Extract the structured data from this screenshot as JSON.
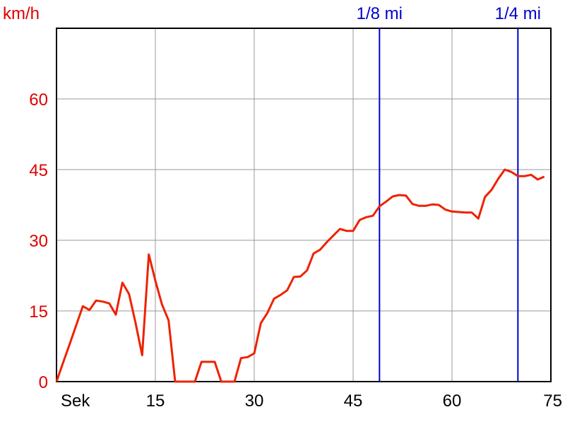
{
  "chart_data": {
    "type": "line",
    "ylabel": "km/h",
    "xlabel": "Sek",
    "xlim": [
      0,
      75
    ],
    "ylim": [
      0,
      75
    ],
    "x_ticks": [
      15,
      30,
      45,
      60,
      75
    ],
    "y_ticks": [
      0,
      15,
      30,
      45,
      60
    ],
    "grid": true,
    "series": [
      {
        "color": "#ee2200",
        "x": [
          0,
          1,
          2,
          3,
          4,
          5,
          6,
          7,
          8,
          9,
          10,
          11,
          12,
          13,
          14,
          15,
          16,
          17,
          18,
          19,
          20,
          21,
          22,
          23,
          24,
          25,
          26,
          27,
          28,
          29,
          30,
          31,
          32,
          33,
          34,
          35,
          36,
          37,
          38,
          39,
          40,
          41,
          42,
          43,
          44,
          45,
          46,
          47,
          48,
          49,
          50,
          51,
          52,
          53,
          54,
          55,
          56,
          57,
          58,
          59,
          60,
          61,
          62,
          63,
          64,
          65,
          66,
          67,
          68,
          69,
          70,
          71,
          72,
          73,
          74
        ],
        "y": [
          0,
          4,
          8,
          12,
          16,
          15.2,
          17.2,
          17,
          16.6,
          14.2,
          21,
          18.6,
          12.4,
          5.6,
          27,
          21.4,
          16.4,
          13,
          0,
          0,
          0,
          0,
          4.2,
          4.2,
          4.2,
          0,
          0,
          0,
          5,
          5.2,
          6,
          12.4,
          14.6,
          17.6,
          18.4,
          19.4,
          22.2,
          22.3,
          23.6,
          27.2,
          28,
          29.6,
          31,
          32.4,
          32,
          32,
          34.3,
          34.9,
          35.2,
          37.2,
          38.2,
          39.3,
          39.6,
          39.5,
          37.7,
          37.3,
          37.3,
          37.6,
          37.5,
          36.5,
          36.1,
          36,
          35.9,
          35.9,
          34.6,
          39.2,
          40.7,
          43,
          45,
          44.5,
          43.6,
          43.6,
          43.9,
          42.9,
          43.5
        ]
      }
    ],
    "markers": [
      {
        "label": "1/8 mi",
        "x": 49,
        "color": "#0000cc"
      },
      {
        "label": "1/4 mi",
        "x": 70,
        "color": "#0000cc"
      }
    ]
  }
}
